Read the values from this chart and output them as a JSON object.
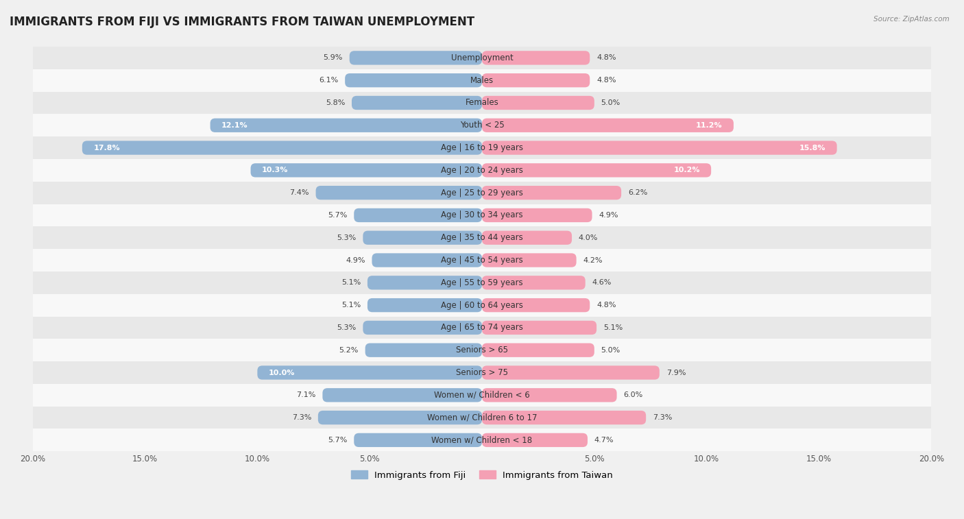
{
  "title": "IMMIGRANTS FROM FIJI VS IMMIGRANTS FROM TAIWAN UNEMPLOYMENT",
  "source": "Source: ZipAtlas.com",
  "categories": [
    "Unemployment",
    "Males",
    "Females",
    "Youth < 25",
    "Age | 16 to 19 years",
    "Age | 20 to 24 years",
    "Age | 25 to 29 years",
    "Age | 30 to 34 years",
    "Age | 35 to 44 years",
    "Age | 45 to 54 years",
    "Age | 55 to 59 years",
    "Age | 60 to 64 years",
    "Age | 65 to 74 years",
    "Seniors > 65",
    "Seniors > 75",
    "Women w/ Children < 6",
    "Women w/ Children 6 to 17",
    "Women w/ Children < 18"
  ],
  "fiji_values": [
    5.9,
    6.1,
    5.8,
    12.1,
    17.8,
    10.3,
    7.4,
    5.7,
    5.3,
    4.9,
    5.1,
    5.1,
    5.3,
    5.2,
    10.0,
    7.1,
    7.3,
    5.7
  ],
  "taiwan_values": [
    4.8,
    4.8,
    5.0,
    11.2,
    15.8,
    10.2,
    6.2,
    4.9,
    4.0,
    4.2,
    4.6,
    4.8,
    5.1,
    5.0,
    7.9,
    6.0,
    7.3,
    4.7
  ],
  "fiji_color": "#92b4d4",
  "taiwan_color": "#f4a0b4",
  "max_value": 20.0,
  "background_color": "#f0f0f0",
  "row_color_light": "#f8f8f8",
  "row_color_dark": "#e8e8e8",
  "title_fontsize": 12,
  "label_fontsize": 8.5,
  "value_fontsize": 8.0,
  "tick_fontsize": 8.5
}
